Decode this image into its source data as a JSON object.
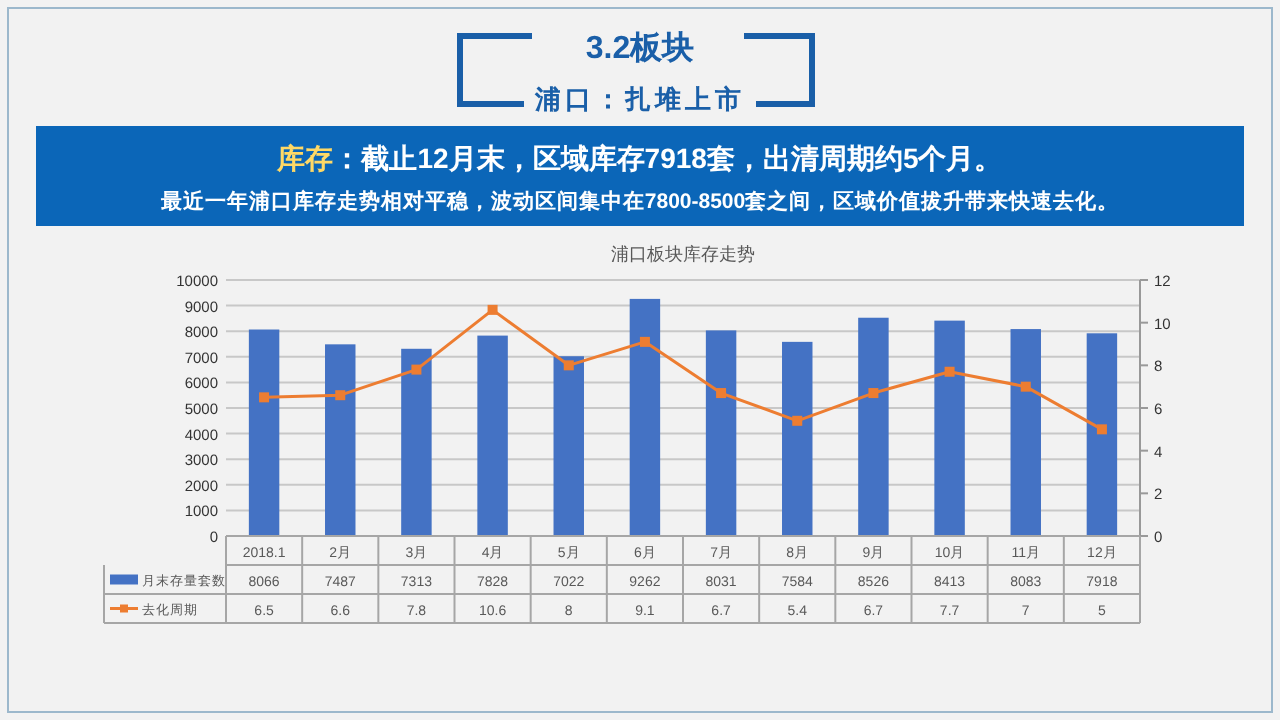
{
  "chart_data": {
    "type": "bar",
    "title": "浦口板块库存走势",
    "annotations": [
      "3.2板块",
      "浦口：扎堆上市",
      "库存",
      "：截止12月末，区域库存7918套，出清周期约5个月。",
      "最近一年浦口库存走势相对平稳，波动区间集中在7800-8500套之间，区域价值拔升带来快速去化。"
    ],
    "categories": [
      "2018.1",
      "2月",
      "3月",
      "4月",
      "5月",
      "6月",
      "7月",
      "8月",
      "9月",
      "10月",
      "11月",
      "12月"
    ],
    "series": [
      {
        "name": "月末存量套数",
        "color": "#4472c4",
        "values": [
          8066,
          7487,
          7313,
          7828,
          7022,
          9262,
          8031,
          7584,
          8526,
          8413,
          8083,
          7918
        ]
      },
      {
        "name": "去化周期",
        "type": "line",
        "axis": "y2",
        "marker": "square",
        "color": "#ed7d31",
        "values": [
          6.5,
          6.6,
          7.8,
          10.6,
          8,
          9.1,
          6.7,
          5.4,
          6.7,
          7.7,
          7,
          5
        ]
      }
    ],
    "ylim": [
      0,
      10000
    ],
    "yticks": [
      0,
      1000,
      2000,
      3000,
      4000,
      5000,
      6000,
      7000,
      8000,
      9000,
      10000
    ],
    "y2lim": [
      0,
      12
    ],
    "y2ticks": [
      0,
      2,
      4,
      6,
      8,
      10,
      12
    ],
    "grid": "y",
    "legend": "bottom",
    "data_labels": true
  }
}
